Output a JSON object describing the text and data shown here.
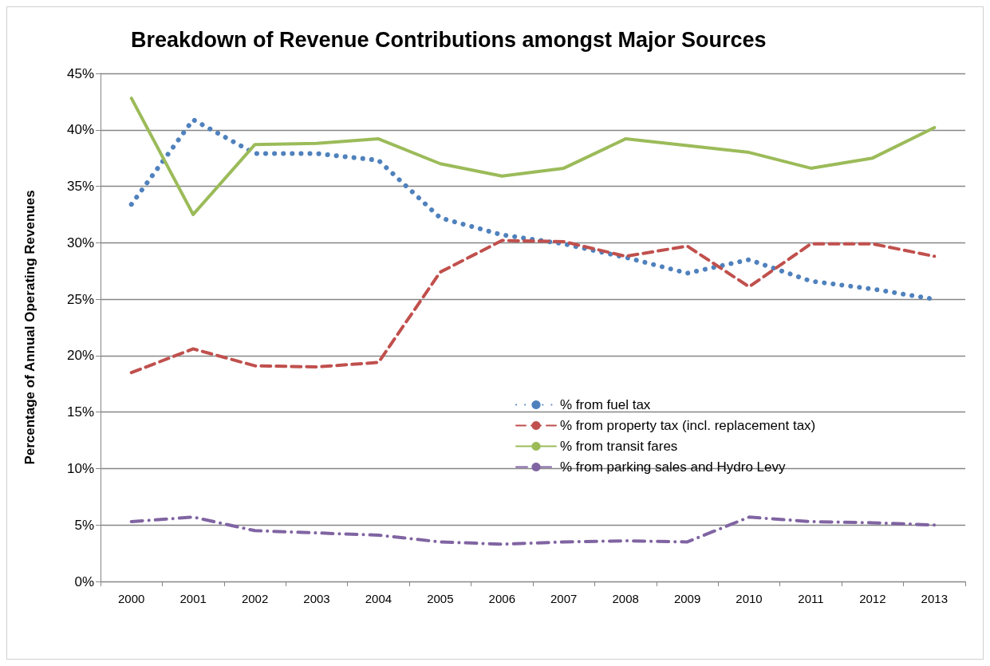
{
  "chart_data": {
    "type": "line",
    "title": "Breakdown of Revenue Contributions amongst Major Sources",
    "ylabel": "Percentage of Annual Operating Revenues",
    "categories": [
      "2000",
      "2001",
      "2002",
      "2003",
      "2004",
      "2005",
      "2006",
      "2007",
      "2008",
      "2009",
      "2010",
      "2011",
      "2012",
      "2013"
    ],
    "series": [
      {
        "name": "% from fuel tax",
        "color": "#4f81bd",
        "line_style": "dotted",
        "values": [
          33.4,
          40.9,
          37.9,
          37.9,
          37.3,
          32.2,
          30.7,
          29.9,
          28.7,
          27.3,
          28.5,
          26.6,
          25.9,
          25.0
        ]
      },
      {
        "name": "% from property tax (incl. replacement tax)",
        "color": "#c0504d",
        "line_style": "dashed",
        "values": [
          18.5,
          20.6,
          19.1,
          19.0,
          19.4,
          27.4,
          30.2,
          30.1,
          28.8,
          29.7,
          26.1,
          29.9,
          29.9,
          28.8
        ]
      },
      {
        "name": "% from transit fares",
        "color": "#9bbb59",
        "line_style": "solid",
        "values": [
          42.8,
          32.5,
          38.7,
          38.8,
          39.2,
          37.0,
          35.9,
          36.6,
          39.2,
          38.6,
          38.0,
          36.6,
          37.5,
          40.2
        ]
      },
      {
        "name": "% from parking sales and Hydro Levy",
        "color": "#8064a2",
        "line_style": "dashdot",
        "values": [
          5.3,
          5.7,
          4.5,
          4.3,
          4.1,
          3.5,
          3.3,
          3.5,
          3.6,
          3.5,
          5.7,
          5.3,
          5.2,
          5.0
        ]
      }
    ],
    "ylim": [
      0,
      45
    ],
    "yticks": [
      {
        "value": 0,
        "label": "0%"
      },
      {
        "value": 5,
        "label": "5%"
      },
      {
        "value": 10,
        "label": "10%"
      },
      {
        "value": 15,
        "label": "15%"
      },
      {
        "value": 20,
        "label": "20%"
      },
      {
        "value": 25,
        "label": "25%"
      },
      {
        "value": 30,
        "label": "30%"
      },
      {
        "value": 35,
        "label": "35%"
      },
      {
        "value": 40,
        "label": "40%"
      },
      {
        "value": 45,
        "label": "45%"
      }
    ],
    "grid": "y",
    "legend": "right",
    "marker": "none"
  }
}
